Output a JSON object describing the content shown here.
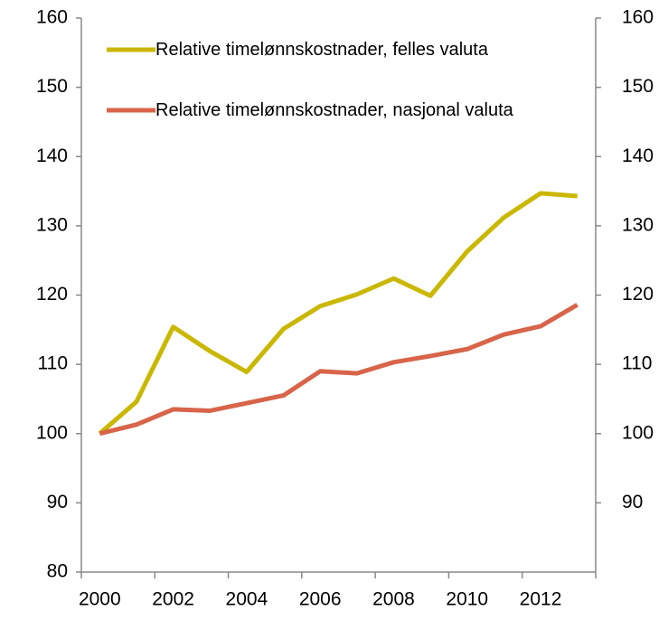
{
  "chart_data": {
    "type": "line",
    "categories": [
      "2000",
      null,
      "2002",
      null,
      "2004",
      null,
      "2006",
      null,
      "2008",
      null,
      "2010",
      null,
      "2012",
      null
    ],
    "series": [
      {
        "name": "Relative timelønnskostnader, felles valuta",
        "color": "#c9b700",
        "values": [
          100,
          104.6,
          115.4,
          111.9,
          108.9,
          115.1,
          118.4,
          120.1,
          122.4,
          119.9,
          126.3,
          131.2,
          134.7,
          134.3
        ]
      },
      {
        "name": "Relative timelønnskostnader, nasjonal valuta",
        "color": "#d8644a",
        "values": [
          100,
          101.3,
          103.5,
          103.3,
          104.4,
          105.5,
          109.0,
          108.7,
          110.3,
          111.2,
          112.2,
          114.3,
          115.5,
          118.6
        ]
      }
    ],
    "ylim": [
      80,
      160
    ],
    "yticks": [
      80,
      90,
      100,
      110,
      120,
      130,
      140,
      150,
      160
    ],
    "y2lim": [
      80,
      160
    ],
    "y2ticks": [
      90,
      100,
      110,
      120,
      130,
      140,
      150,
      160
    ],
    "legend": "upper left",
    "grid": false
  }
}
